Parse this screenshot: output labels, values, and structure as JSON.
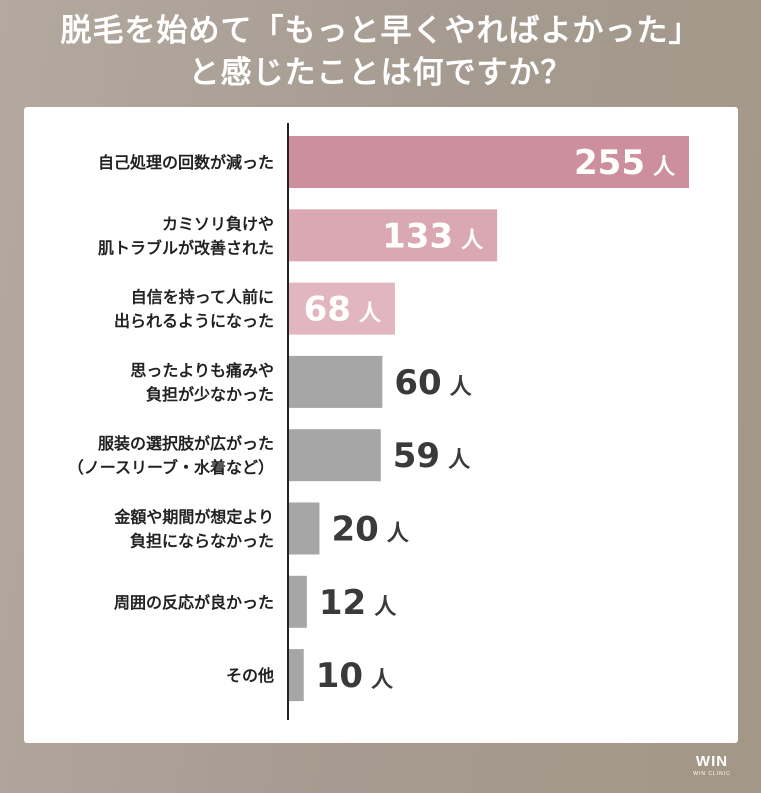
{
  "header": {
    "title_line1": "脱毛を始めて「もっと早くやればよかった」",
    "title_line2": "と感じたことは何ですか？"
  },
  "brand": {
    "logo_text": "WIN",
    "logo_sub": "WIN CLINIC"
  },
  "colors": {
    "highlight_1": "#cd8f9e",
    "highlight_2": "#d9a8b3",
    "highlight_3": "#e2b6c0",
    "gray_bar": "#a6a6a6",
    "category_text": "#222222",
    "value_text_inside": "#ffffff",
    "value_text_outside": "#3a3a3a"
  },
  "chart_data": {
    "type": "bar",
    "orientation": "horizontal",
    "unit": "人",
    "categories": [
      [
        "自己処理の回数が減った"
      ],
      [
        "カミソリ負けや",
        "肌トラブルが改善された"
      ],
      [
        "自信を持って人前に",
        "出られるようになった"
      ],
      [
        "思ったよりも痛みや",
        "負担が少なかった"
      ],
      [
        "服装の選択肢が広がった",
        "（ノースリーブ・水着など）"
      ],
      [
        "金額や期間が想定より",
        "負担にならなかった"
      ],
      [
        "周囲の反応が良かった"
      ],
      [
        "その他"
      ]
    ],
    "values": [
      255,
      133,
      68,
      60,
      59,
      20,
      12,
      10
    ],
    "bar_colors": [
      "#cd8f9e",
      "#d9a8b3",
      "#e2b6c0",
      "#a6a6a6",
      "#a6a6a6",
      "#a6a6a6",
      "#a6a6a6",
      "#a6a6a6"
    ],
    "label_inside": [
      true,
      true,
      true,
      false,
      false,
      false,
      false,
      false
    ],
    "xlim": [
      0,
      255
    ],
    "grid": false,
    "legend": "none"
  }
}
